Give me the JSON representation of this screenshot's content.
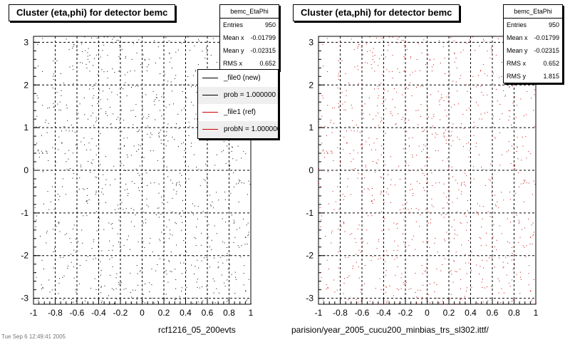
{
  "panels": [
    {
      "title": "Cluster (eta,phi) for detector bemc",
      "stats": {
        "name": "bemc_EtaPhi",
        "rows": [
          {
            "label": "Entries",
            "value": "950"
          },
          {
            "label": "Mean x",
            "value": "-0.01799"
          },
          {
            "label": "Mean y",
            "value": "-0.02315"
          },
          {
            "label": "RMS x",
            "value": "0.652"
          }
        ]
      },
      "legend": [
        {
          "text": "_file0 (new)",
          "color": "#000000"
        },
        {
          "text": "prob = 1.000000",
          "color": "#000000"
        },
        {
          "text": "_file1 (ref)",
          "color": "#cc0000"
        },
        {
          "text": "probN = 1.000000",
          "color": "#cc0000"
        }
      ],
      "footer": "rcf1216_05_200evts"
    },
    {
      "title": "Cluster (eta,phi) for detector bemc",
      "stats": {
        "name": "bemc_EtaPhi",
        "rows": [
          {
            "label": "Entries",
            "value": "950"
          },
          {
            "label": "Mean x",
            "value": "-0.01799"
          },
          {
            "label": "Mean y",
            "value": "-0.02315"
          },
          {
            "label": "RMS x",
            "value": "0.652"
          },
          {
            "label": "RMS y",
            "value": "1.815"
          }
        ]
      },
      "footer": "parision/year_2005_cucu200_minbias_trs_sl302.ittf/"
    }
  ],
  "corner_text": "Tue Sep 6 12:49:41 2005",
  "chart_data": [
    {
      "type": "scatter",
      "title": "Cluster (eta,phi) for detector bemc",
      "xlim": [
        -1,
        1
      ],
      "ylim": [
        -3.14,
        3.14
      ],
      "x_ticks": [
        "-1",
        "-0.8",
        "-0.6",
        "-0.4",
        "-0.2",
        "0",
        "0.2",
        "0.4",
        "0.6",
        "0.8",
        "1"
      ],
      "y_ticks": [
        "-3",
        "-2",
        "-1",
        "0",
        "1",
        "2",
        "3"
      ],
      "grid": true,
      "marker_color": "#000000",
      "series": [
        {
          "name": "_file0 (new)",
          "entries": 950
        }
      ]
    },
    {
      "type": "scatter",
      "title": "Cluster (eta,phi) for detector bemc",
      "xlim": [
        -1,
        1
      ],
      "ylim": [
        -3.14,
        3.14
      ],
      "x_ticks": [
        "-1",
        "-0.8",
        "-0.6",
        "-0.4",
        "-0.2",
        "0",
        "0.2",
        "0.4",
        "0.6",
        "0.8",
        "1"
      ],
      "y_ticks": [
        "-3",
        "-2",
        "-1",
        "0",
        "1",
        "2",
        "3"
      ],
      "grid": true,
      "marker_color": "#cc0000",
      "series": [
        {
          "name": "_file1 (ref)",
          "entries": 950
        }
      ]
    }
  ]
}
